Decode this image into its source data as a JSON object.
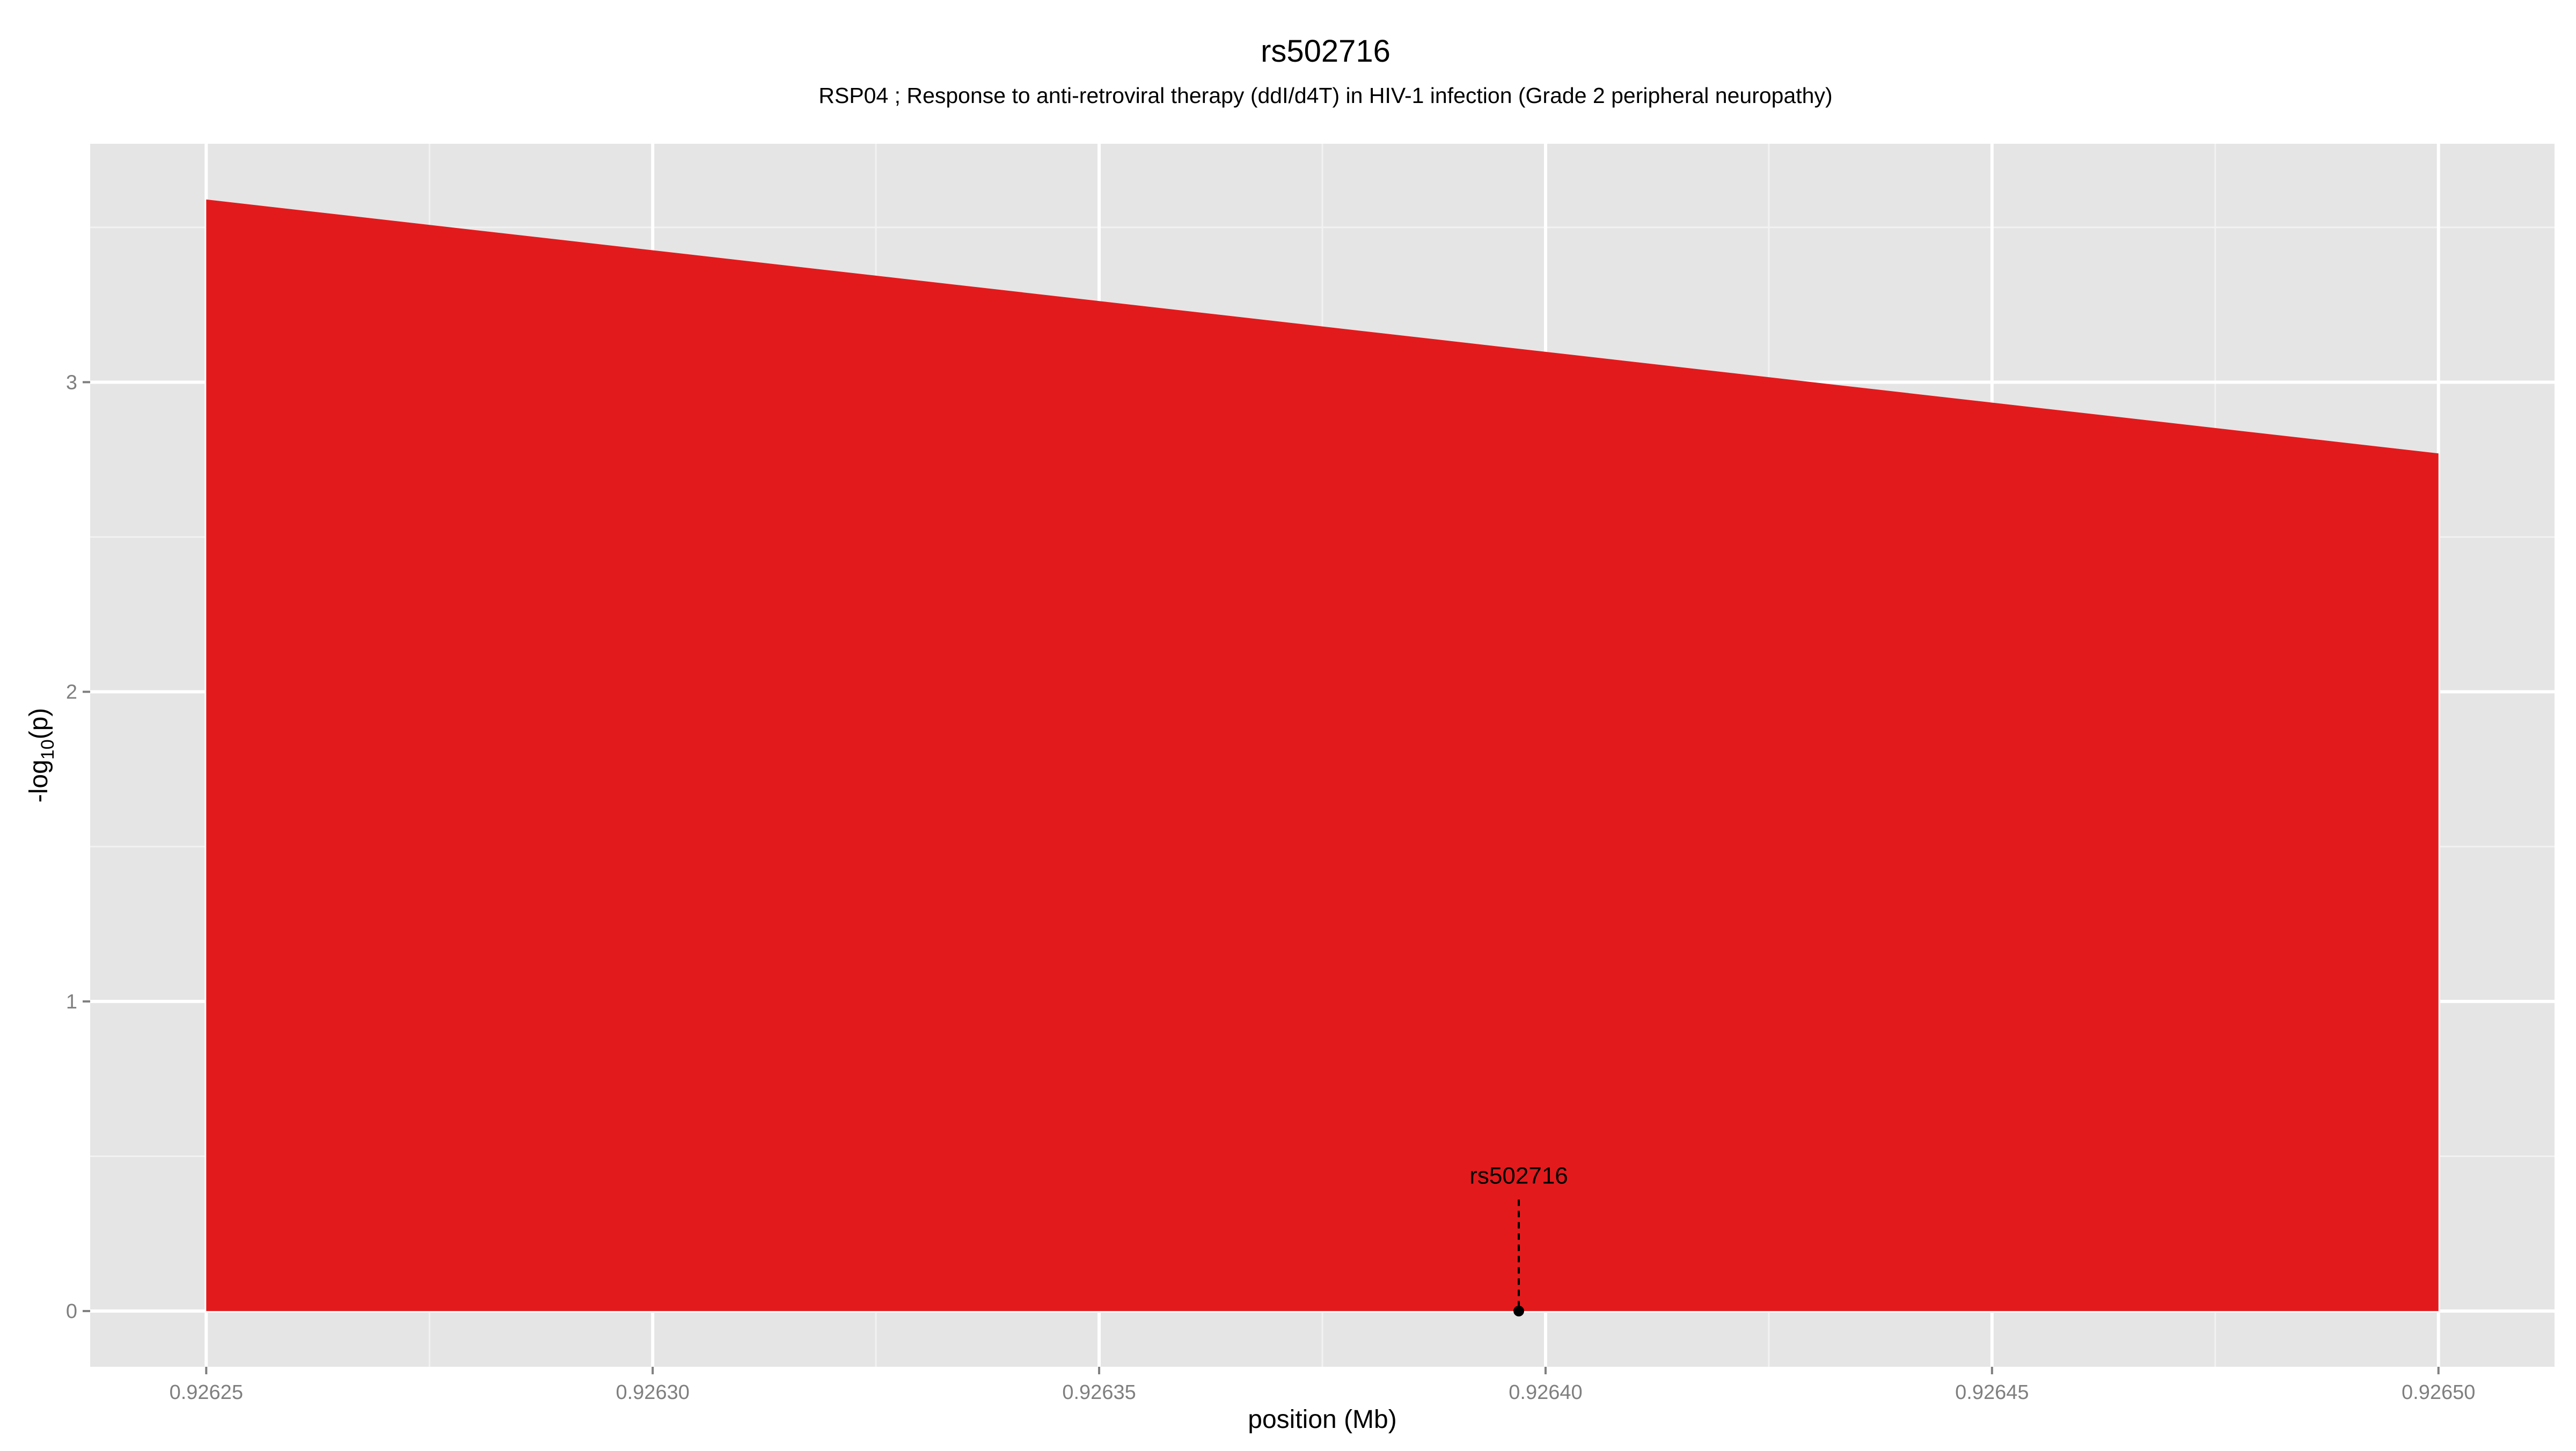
{
  "chart_data": {
    "type": "area",
    "title": "rs502716",
    "subtitle": "RSP04 ; Response to anti-retroviral therapy (ddI/d4T) in HIV-1 infection (Grade 2 peripheral neuropathy)",
    "xlabel": "position (Mb)",
    "ylabel": "-log",
    "ylabel_sub": "10",
    "ylabel_tail": "(p)",
    "x": [
      0.92625,
      0.9265
    ],
    "y": [
      3.59,
      2.77
    ],
    "xlim": [
      0.926237,
      0.926513
    ],
    "ylim": [
      -0.18,
      3.77
    ],
    "x_ticks": [
      0.92625,
      0.9263,
      0.92635,
      0.9264,
      0.92645,
      0.9265
    ],
    "x_tick_labels": [
      "0.92625",
      "0.92630",
      "0.92635",
      "0.92640",
      "0.92645",
      "0.92650"
    ],
    "y_ticks": [
      0,
      1,
      2,
      3
    ],
    "y_tick_labels": [
      "0",
      "1",
      "2",
      "3"
    ],
    "grid": true,
    "legend": "none",
    "fill_color": "#e31a1c",
    "panel_color": "#e5e5e5",
    "annotation": {
      "label": "rs502716",
      "x": 0.926397,
      "y": 0,
      "line_top_y": 0.36
    }
  }
}
